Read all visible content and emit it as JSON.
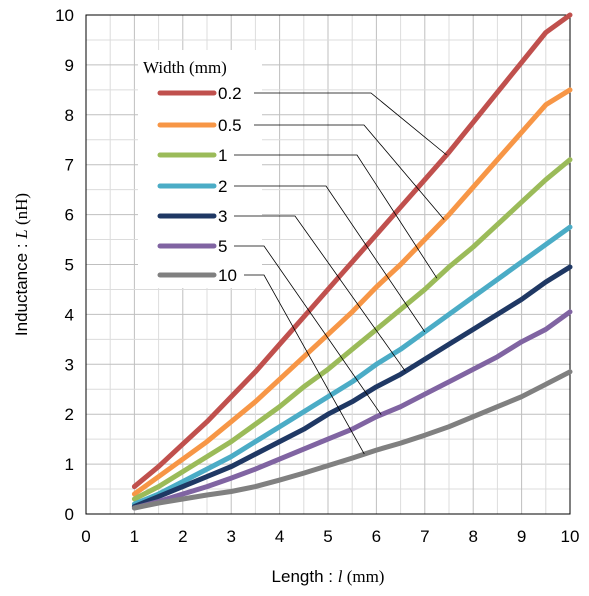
{
  "chart_data": {
    "type": "line",
    "xlabel": "Length : l (mm)",
    "xlabel_parts": {
      "prefix": "Length : ",
      "var": "l",
      "unit": " (mm)"
    },
    "ylabel": "Inductance : L (nH)",
    "ylabel_parts": {
      "prefix": "Inductance : ",
      "var": "L",
      "unit": " (nH)"
    },
    "xlim": [
      0,
      10
    ],
    "ylim": [
      0,
      10
    ],
    "xticks": [
      "0",
      "1",
      "2",
      "3",
      "4",
      "5",
      "6",
      "7",
      "8",
      "9",
      "10"
    ],
    "yticks": [
      "0",
      "1",
      "2",
      "3",
      "4",
      "5",
      "6",
      "7",
      "8",
      "9",
      "10"
    ],
    "grid": true,
    "legend": {
      "title": "Width (mm)",
      "placement": "top-left"
    },
    "x": [
      1,
      1.5,
      2,
      2.5,
      3,
      3.5,
      4,
      4.5,
      5,
      5.5,
      6,
      6.5,
      7,
      7.5,
      8,
      8.5,
      9,
      9.5,
      10
    ],
    "series": [
      {
        "name": "0.2",
        "color": "#c0504d",
        "values": [
          0.55,
          0.95,
          1.4,
          1.85,
          2.35,
          2.85,
          3.4,
          3.95,
          4.5,
          5.05,
          5.6,
          6.15,
          6.7,
          7.25,
          7.85,
          8.45,
          9.05,
          9.65,
          10.25
        ]
      },
      {
        "name": "0.5",
        "color": "#f79646",
        "values": [
          0.4,
          0.75,
          1.1,
          1.45,
          1.85,
          2.25,
          2.7,
          3.15,
          3.6,
          4.05,
          4.55,
          5.0,
          5.5,
          6.0,
          6.55,
          7.1,
          7.65,
          8.2,
          8.5
        ]
      },
      {
        "name": "1",
        "color": "#9bbb59",
        "values": [
          0.3,
          0.55,
          0.85,
          1.15,
          1.45,
          1.8,
          2.15,
          2.55,
          2.9,
          3.3,
          3.7,
          4.1,
          4.5,
          4.95,
          5.35,
          5.8,
          6.25,
          6.7,
          7.1
        ]
      },
      {
        "name": "2",
        "color": "#4bacc6",
        "values": [
          0.2,
          0.4,
          0.65,
          0.9,
          1.15,
          1.45,
          1.75,
          2.05,
          2.35,
          2.65,
          3.0,
          3.3,
          3.65,
          4.0,
          4.35,
          4.7,
          5.05,
          5.4,
          5.75
        ]
      },
      {
        "name": "3",
        "color": "#1f3864",
        "values": [
          0.15,
          0.35,
          0.55,
          0.75,
          0.95,
          1.2,
          1.45,
          1.7,
          2.0,
          2.25,
          2.55,
          2.8,
          3.1,
          3.4,
          3.7,
          4.0,
          4.3,
          4.65,
          4.95
        ]
      },
      {
        "name": "5",
        "color": "#8064a2",
        "values": [
          0.12,
          0.25,
          0.4,
          0.55,
          0.72,
          0.9,
          1.1,
          1.3,
          1.5,
          1.7,
          1.95,
          2.15,
          2.4,
          2.65,
          2.9,
          3.15,
          3.45,
          3.7,
          4.05
        ]
      },
      {
        "name": "10",
        "color": "#808080",
        "values": [
          0.12,
          0.22,
          0.3,
          0.38,
          0.45,
          0.55,
          0.68,
          0.82,
          0.97,
          1.12,
          1.28,
          1.42,
          1.58,
          1.75,
          1.95,
          2.15,
          2.35,
          2.6,
          2.85
        ]
      }
    ]
  }
}
